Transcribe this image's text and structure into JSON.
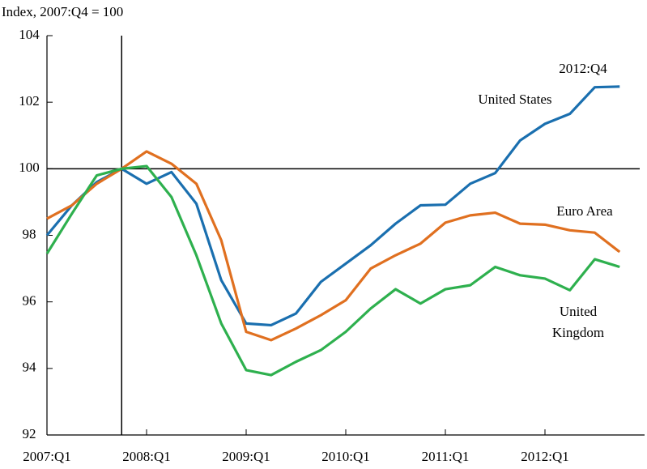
{
  "chart_data": {
    "type": "line",
    "subtitle": "Index, 2007:Q4 = 100",
    "categories": [
      "2007:Q1",
      null,
      null,
      null,
      "2008:Q1",
      null,
      null,
      null,
      "2009:Q1",
      null,
      null,
      null,
      "2010:Q1",
      null,
      null,
      null,
      "2011:Q1",
      null,
      null,
      null,
      "2012:Q1",
      null,
      null,
      null
    ],
    "series": [
      {
        "name": "United States",
        "color": "#1a6faf",
        "values": [
          98.0,
          98.9,
          99.6,
          100.0,
          99.55,
          99.9,
          98.95,
          96.65,
          95.35,
          95.3,
          95.65,
          96.6,
          97.15,
          97.7,
          98.35,
          98.9,
          98.92,
          99.55,
          99.87,
          100.85,
          101.35,
          101.65,
          102.45,
          102.47
        ]
      },
      {
        "name": "Euro Area",
        "color": "#e07020",
        "values": [
          98.5,
          98.9,
          99.55,
          100.0,
          100.52,
          100.15,
          99.55,
          97.85,
          95.1,
          94.85,
          95.2,
          95.6,
          96.05,
          97.0,
          97.4,
          97.75,
          98.38,
          98.6,
          98.68,
          98.35,
          98.32,
          98.15,
          98.08,
          97.5
        ]
      },
      {
        "name": "United Kingdom",
        "color": "#2eb04e",
        "values": [
          97.45,
          98.65,
          99.8,
          100.0,
          100.08,
          99.15,
          97.4,
          95.35,
          93.95,
          93.8,
          94.2,
          94.55,
          95.1,
          95.8,
          96.38,
          95.95,
          96.38,
          96.5,
          97.05,
          96.8,
          96.7,
          96.35,
          97.28,
          97.05
        ]
      }
    ],
    "annotations": [
      "2012:Q4",
      "United States",
      "Euro Area",
      "United",
      "Kingdom"
    ],
    "ylim": [
      92,
      104
    ],
    "yticks": [
      92,
      94,
      96,
      98,
      100,
      102,
      104
    ],
    "hline": 100,
    "vline": 3
  }
}
